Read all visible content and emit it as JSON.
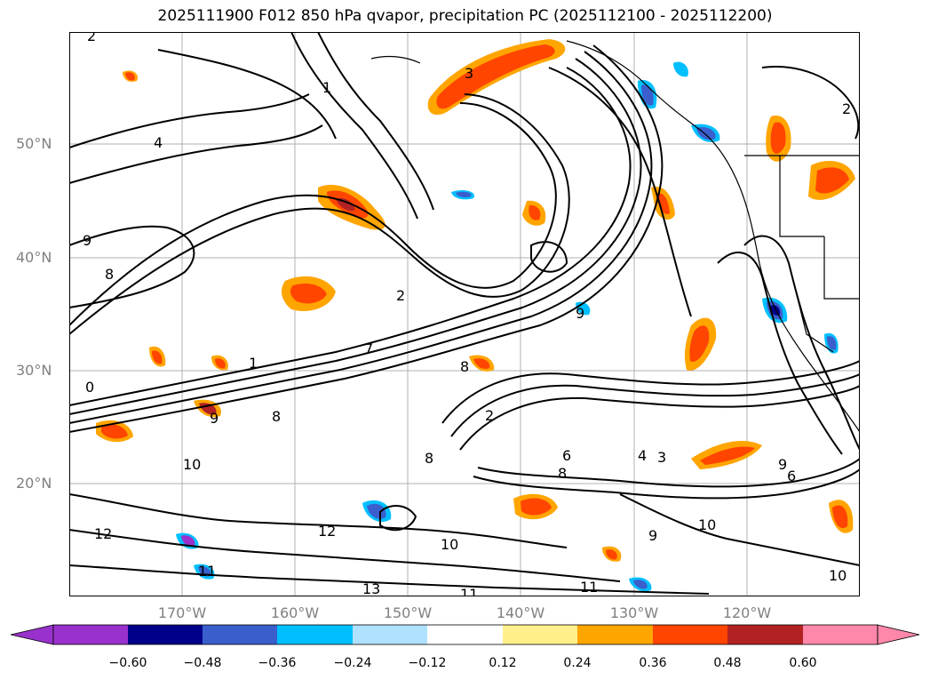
{
  "title": "2025111900 F012 850 hPa qvapor, precipitation PC (2025112100 - 2025112200)",
  "map": {
    "lat_labels": [
      "50°N",
      "40°N",
      "30°N",
      "20°N"
    ],
    "lon_labels": [
      "170°W",
      "160°W",
      "150°W",
      "140°W",
      "130°W",
      "120°W"
    ],
    "contour_labels": [
      {
        "text": "2"
      },
      {
        "text": "4"
      },
      {
        "text": "9"
      },
      {
        "text": "8"
      },
      {
        "text": "0"
      },
      {
        "text": "2"
      },
      {
        "text": "1"
      },
      {
        "text": "8"
      },
      {
        "text": "9"
      },
      {
        "text": "7"
      },
      {
        "text": "2"
      },
      {
        "text": "10"
      },
      {
        "text": "9"
      },
      {
        "text": "8"
      },
      {
        "text": "12"
      },
      {
        "text": "10"
      },
      {
        "text": "13"
      },
      {
        "text": "11"
      },
      {
        "text": "11"
      },
      {
        "text": "10"
      },
      {
        "text": "6"
      },
      {
        "text": "8"
      },
      {
        "text": "3"
      },
      {
        "text": "2"
      },
      {
        "text": "1"
      },
      {
        "text": "11"
      },
      {
        "text": "8"
      },
      {
        "text": "6"
      },
      {
        "text": "4"
      },
      {
        "text": "9"
      },
      {
        "text": "10"
      },
      {
        "text": "3"
      },
      {
        "text": "12"
      },
      {
        "text": "9"
      }
    ]
  },
  "colorbar": {
    "ticks": [
      "−0.60",
      "−0.48",
      "−0.36",
      "−0.24",
      "−0.12",
      "0.12",
      "0.24",
      "0.36",
      "0.48",
      "0.60"
    ],
    "colors": [
      "#9932cc",
      "#00008b",
      "#3a5fcd",
      "#00bfff",
      "#b0e2ff",
      "#ffffff",
      "#fff08c",
      "#ffa500",
      "#ff4500",
      "#b22222",
      "#ff88aa"
    ]
  },
  "colors": {
    "grid": "#b0b0b0",
    "contour": "#000000",
    "axis_label": "#808080"
  }
}
